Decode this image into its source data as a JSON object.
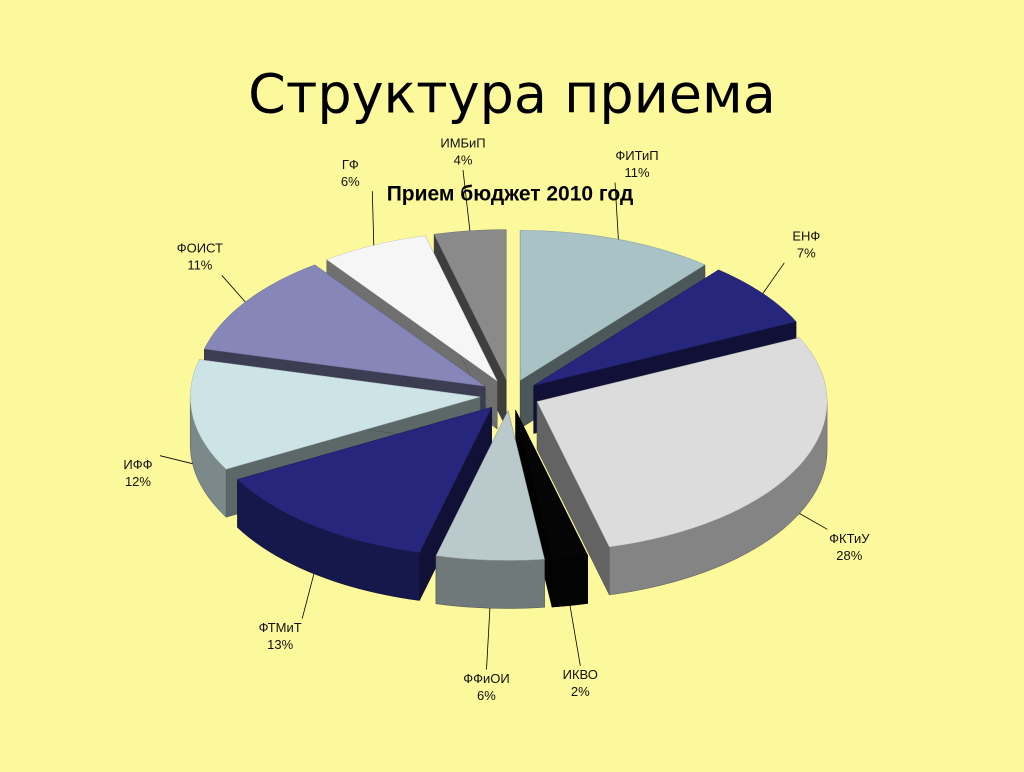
{
  "slide": {
    "title": "Структура приема"
  },
  "chart_data": {
    "type": "pie",
    "title": "Прием бюджет 2010 год",
    "categories": [
      "ФИТиП",
      "ЕНФ",
      "ФКТиУ",
      "ИКВО",
      "ФФиОИ",
      "ФТМиТ",
      "ИФФ",
      "ФОИСТ",
      "ГФ",
      "ИМБиП"
    ],
    "values": [
      11,
      7,
      28,
      2,
      6,
      13,
      12,
      11,
      6,
      4
    ],
    "value_labels": [
      "11%",
      "7%",
      "28%",
      "2%",
      "6%",
      "13%",
      "12%",
      "11%",
      "6%",
      "4%"
    ],
    "colors": [
      "#a8c2c6",
      "#25267c",
      "#dcdcdc",
      "#050505",
      "#b9c9cc",
      "#25267c",
      "#cde4e7",
      "#8686b8",
      "#f6f6f6",
      "#8a8a8a"
    ]
  }
}
